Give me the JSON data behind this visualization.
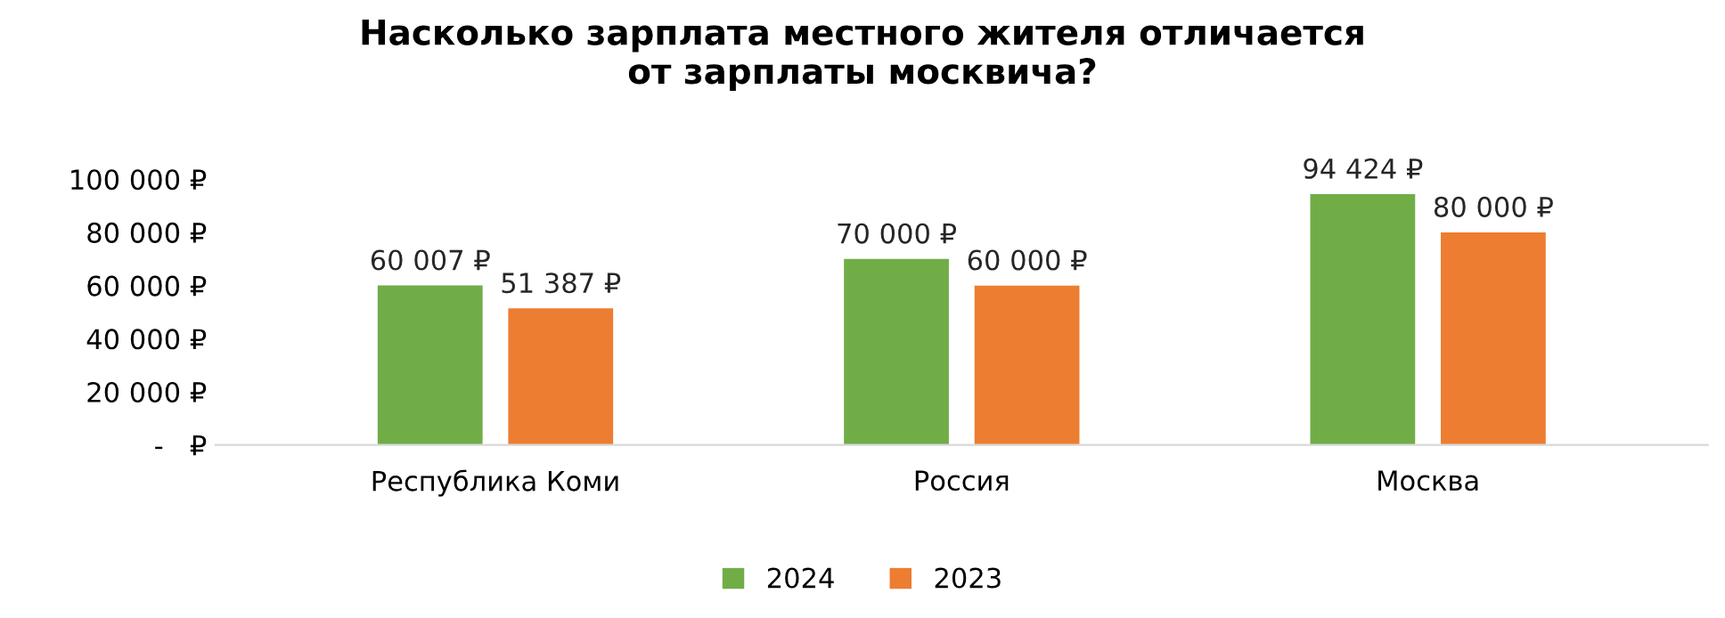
{
  "chart_data": {
    "type": "bar",
    "title": "Насколько зарплата местного жителя отличается\nот зарплаты москвича?",
    "categories": [
      "Республика Коми",
      "Россия",
      "Москва"
    ],
    "series": [
      {
        "name": "2024",
        "color": "#70ad47",
        "values": [
          60007,
          70000,
          94424
        ],
        "value_labels": [
          "60 007 ₽",
          "70 000 ₽",
          "94 424 ₽"
        ]
      },
      {
        "name": "2023",
        "color": "#ed7d31",
        "values": [
          51387,
          60000,
          80000
        ],
        "value_labels": [
          "51 387 ₽",
          "60 000 ₽",
          "80 000 ₽"
        ]
      }
    ],
    "ylim": [
      0,
      100000
    ],
    "yticks": [
      {
        "value": 0,
        "label": "-   ₽"
      },
      {
        "value": 20000,
        "label": "20 000 ₽"
      },
      {
        "value": 40000,
        "label": "40 000 ₽"
      },
      {
        "value": 60000,
        "label": "60 000 ₽"
      },
      {
        "value": 80000,
        "label": "80 000 ₽"
      },
      {
        "value": 100000,
        "label": "100 000 ₽"
      }
    ],
    "grid": false,
    "legend": "bottom"
  }
}
